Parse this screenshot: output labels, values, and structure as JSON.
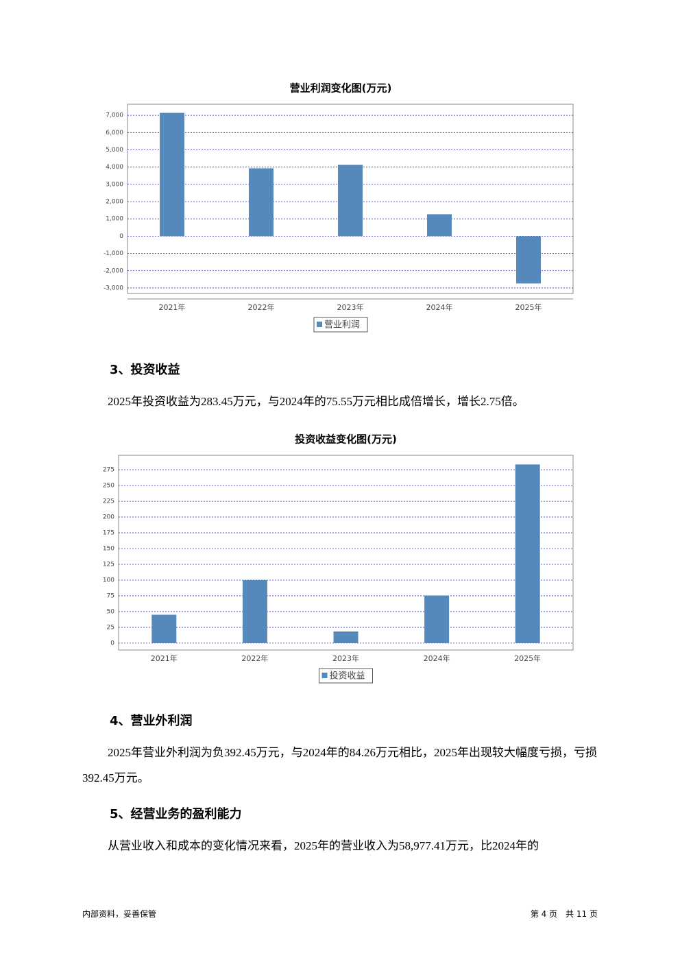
{
  "chart_data": [
    {
      "type": "bar",
      "title": "营业利润变化图(万元)",
      "categories": [
        "2021年",
        "2022年",
        "2023年",
        "2024年",
        "2025年"
      ],
      "series": [
        {
          "name": "营业利润",
          "color": "#5588bb",
          "values": [
            7140,
            3930,
            4130,
            1270,
            -2740
          ]
        }
      ],
      "ylim": [
        -3320,
        7640
      ],
      "yticks": [
        {
          "value": -3000,
          "label": "-3,000"
        },
        {
          "value": -2000,
          "label": "-2,000"
        },
        {
          "value": -1000,
          "label": "-1,000"
        },
        0,
        {
          "value": 1000,
          "label": "1,000"
        },
        {
          "value": 2000,
          "label": "2,000"
        },
        {
          "value": 3000,
          "label": "3,000"
        },
        {
          "value": 4000,
          "label": "4,000"
        },
        {
          "value": 5000,
          "label": "5,000"
        },
        {
          "value": 6000,
          "label": "6,000"
        },
        {
          "value": 7000,
          "label": "7,000"
        }
      ],
      "grid": true
    },
    {
      "type": "bar",
      "title": "投资收益变化图(万元)",
      "categories": [
        "2021年",
        "2022年",
        "2023年",
        "2024年",
        "2025年"
      ],
      "series": [
        {
          "name": "投资收益",
          "color": "#5588bb",
          "values": [
            45,
            100,
            18.5,
            75.55,
            283.45
          ]
        }
      ],
      "ylim": [
        -11,
        298
      ],
      "yticks": [
        0,
        25,
        50,
        75,
        100,
        125,
        150,
        175,
        200,
        225,
        250,
        275
      ],
      "grid": true
    }
  ],
  "sections": [
    {
      "heading": "3、投资收益",
      "paragraph": "2025年投资收益为283.45万元，与2024年的75.55万元相比成倍增长，增长2.75倍。"
    },
    {
      "heading": "4、营业外利润",
      "paragraph": "2025年营业外利润为负392.45万元，与2024年的84.26万元相比，2025年出现较大幅度亏损，亏损392.45万元。"
    },
    {
      "heading": "5、经营业务的盈利能力",
      "paragraph": "从营业收入和成本的变化情况来看，2025年的营业收入为58,977.41万元，比2024年的"
    }
  ],
  "footer": {
    "left": "内部资料，妥善保管",
    "right": "第 4 页　共 11 页"
  }
}
